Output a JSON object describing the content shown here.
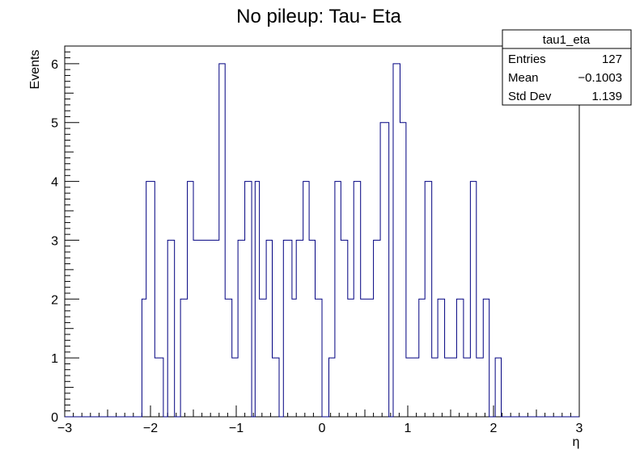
{
  "chart_data": {
    "type": "histogram",
    "title": "No pileup:  Tau- Eta",
    "xlabel": "η",
    "ylabel": "Events",
    "xlim": [
      -3,
      3
    ],
    "ylim": [
      0,
      6.3
    ],
    "bin_width": 0.1,
    "x_ticks": [
      -3,
      -2,
      -1,
      0,
      1,
      2,
      3
    ],
    "x_tick_labels": [
      "−3",
      "−2",
      "−1",
      "0",
      "1",
      "2",
      "3"
    ],
    "y_ticks": [
      0,
      1,
      2,
      3,
      4,
      5,
      6
    ],
    "y_tick_labels": [
      "0",
      "1",
      "2",
      "3",
      "4",
      "5",
      "6"
    ],
    "line_color": "#000080",
    "bins": [
      {
        "x": -2.1,
        "value": 2
      },
      {
        "x": -2.05,
        "value": 4
      },
      {
        "x": -1.95,
        "value": 1
      },
      {
        "x": -1.85,
        "value": 0
      },
      {
        "x": -1.8,
        "value": 3
      },
      {
        "x": -1.72,
        "value": 0
      },
      {
        "x": -1.65,
        "value": 2
      },
      {
        "x": -1.57,
        "value": 4
      },
      {
        "x": -1.5,
        "value": 3
      },
      {
        "x": -1.2,
        "value": 6
      },
      {
        "x": -1.13,
        "value": 2
      },
      {
        "x": -1.05,
        "value": 1
      },
      {
        "x": -0.98,
        "value": 3
      },
      {
        "x": -0.9,
        "value": 4
      },
      {
        "x": -0.82,
        "value": 0
      },
      {
        "x": -0.78,
        "value": 4
      },
      {
        "x": -0.73,
        "value": 2
      },
      {
        "x": -0.65,
        "value": 3
      },
      {
        "x": -0.58,
        "value": 1
      },
      {
        "x": -0.5,
        "value": 0
      },
      {
        "x": -0.45,
        "value": 3
      },
      {
        "x": -0.35,
        "value": 2
      },
      {
        "x": -0.3,
        "value": 3
      },
      {
        "x": -0.22,
        "value": 4
      },
      {
        "x": -0.15,
        "value": 3
      },
      {
        "x": -0.08,
        "value": 2
      },
      {
        "x": 0.0,
        "value": 0
      },
      {
        "x": 0.08,
        "value": 1
      },
      {
        "x": 0.15,
        "value": 4
      },
      {
        "x": 0.22,
        "value": 3
      },
      {
        "x": 0.3,
        "value": 2
      },
      {
        "x": 0.37,
        "value": 4
      },
      {
        "x": 0.45,
        "value": 2
      },
      {
        "x": 0.6,
        "value": 3
      },
      {
        "x": 0.68,
        "value": 5
      },
      {
        "x": 0.78,
        "value": 0
      },
      {
        "x": 0.83,
        "value": 6
      },
      {
        "x": 0.91,
        "value": 5
      },
      {
        "x": 0.98,
        "value": 1
      },
      {
        "x": 1.13,
        "value": 2
      },
      {
        "x": 1.2,
        "value": 4
      },
      {
        "x": 1.28,
        "value": 1
      },
      {
        "x": 1.35,
        "value": 2
      },
      {
        "x": 1.43,
        "value": 1
      },
      {
        "x": 1.57,
        "value": 2
      },
      {
        "x": 1.65,
        "value": 1
      },
      {
        "x": 1.73,
        "value": 4
      },
      {
        "x": 1.8,
        "value": 1
      },
      {
        "x": 1.88,
        "value": 2
      },
      {
        "x": 1.95,
        "value": 0
      },
      {
        "x": 2.02,
        "value": 1
      },
      {
        "x": 2.09,
        "value": 0
      }
    ]
  },
  "stats_box": {
    "name": "tau1_eta",
    "rows": [
      {
        "label": "Entries",
        "value": "127"
      },
      {
        "label": "Mean",
        "value": "−0.1003"
      },
      {
        "label": "Std Dev",
        "value": "1.139"
      }
    ]
  }
}
